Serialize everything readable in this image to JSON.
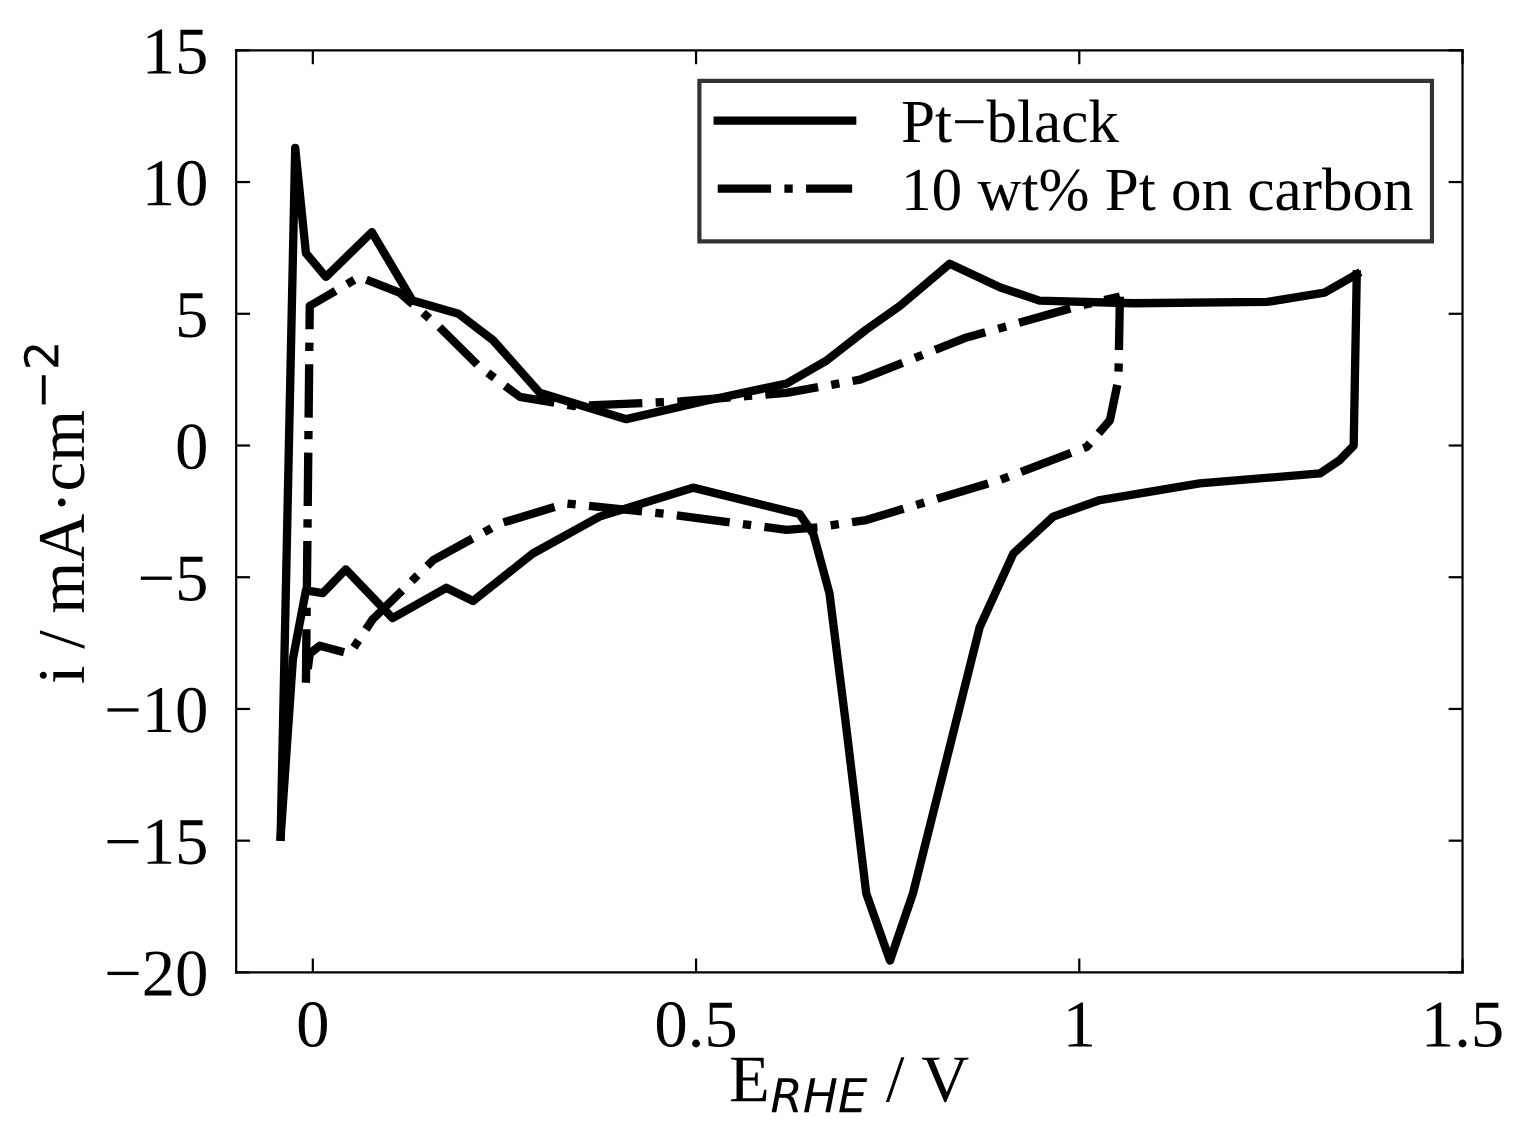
{
  "chart_data": {
    "type": "line",
    "xlabel": "E$_{RHE}$ / V",
    "ylabel": "i / mA·cm$^{−2}$",
    "xlim": [
      -0.1,
      1.5
    ],
    "xticks": [
      0,
      0.5,
      1,
      1.5
    ],
    "ylim": [
      -20,
      15
    ],
    "yticks": [
      {
        "value": -20,
        "label": "−20"
      },
      {
        "value": -15,
        "label": "−15"
      },
      {
        "value": -10,
        "label": "−10"
      },
      {
        "value": -5,
        "label": "−5"
      },
      0,
      5,
      10,
      15
    ],
    "grid": false,
    "legend": "top right",
    "marker": "none",
    "series": [
      {
        "name": "Pt−black",
        "color": "#000000",
        "line_style": "solid",
        "x": [
          -0.042,
          -0.023,
          -0.009,
          0.017,
          0.077,
          0.13,
          0.19,
          0.235,
          0.296,
          0.409,
          0.513,
          0.618,
          0.669,
          0.722,
          0.766,
          0.831,
          0.897,
          0.948,
          1.07,
          1.245,
          1.32,
          1.362
        ],
        "values": [
          -14.85,
          11.3,
          7.3,
          6.4,
          8.1,
          5.5,
          5.0,
          4.0,
          2.0,
          1.0,
          1.7,
          2.35,
          3.2,
          4.4,
          5.3,
          6.9,
          6.0,
          5.5,
          5.4,
          5.45,
          5.8,
          6.5
        ]
      },
      {
        "color": "#000000",
        "line_style": "solid",
        "x": [
          1.362,
          1.358,
          1.34,
          1.314,
          1.157,
          1.027,
          0.966,
          0.914,
          0.87,
          0.827,
          0.783,
          0.753,
          0.722,
          0.696,
          0.674,
          0.653,
          0.635,
          0.496,
          0.374,
          0.287,
          0.209,
          0.174,
          0.104,
          0.043,
          0.013,
          -0.009,
          -0.026,
          -0.042
        ],
        "values": [
          6.5,
          0,
          -0.55,
          -1.06,
          -1.44,
          -2.07,
          -2.7,
          -4.1,
          -6.9,
          -11.9,
          -17.0,
          -19.55,
          -17.0,
          -10.7,
          -5.6,
          -3.35,
          -2.6,
          -1.6,
          -2.7,
          -4.1,
          -5.9,
          -5.4,
          -6.55,
          -4.7,
          -5.6,
          -5.5,
          -8.1,
          -14.85
        ]
      },
      {
        "name": "10 wt% Pt on carbon",
        "color": "#000000",
        "line_style": "dashdot",
        "x": [
          -0.009,
          -0.004,
          0.002,
          0.061,
          0.113,
          0.165,
          0.217,
          0.27,
          0.34,
          0.479,
          0.618,
          0.714,
          0.853,
          1.0,
          1.053
        ],
        "values": [
          -9.0,
          5.3,
          5.4,
          6.4,
          5.8,
          4.5,
          3.0,
          1.85,
          1.5,
          1.67,
          2.0,
          2.5,
          4.1,
          5.3,
          5.65
        ]
      },
      {
        "color": "#000000",
        "line_style": "dashdot",
        "x": [
          1.053,
          1.051,
          1.04,
          1.01,
          0.897,
          0.722,
          0.661,
          0.618,
          0.461,
          0.331,
          0.244,
          0.157,
          0.078,
          0.048,
          0.009,
          -0.004,
          -0.009
        ],
        "values": [
          5.65,
          2.5,
          0.96,
          -0.05,
          -1.3,
          -2.83,
          -3.1,
          -3.2,
          -2.6,
          -2.2,
          -2.96,
          -4.35,
          -6.6,
          -7.9,
          -7.6,
          -7.9,
          -9.0
        ]
      }
    ]
  }
}
